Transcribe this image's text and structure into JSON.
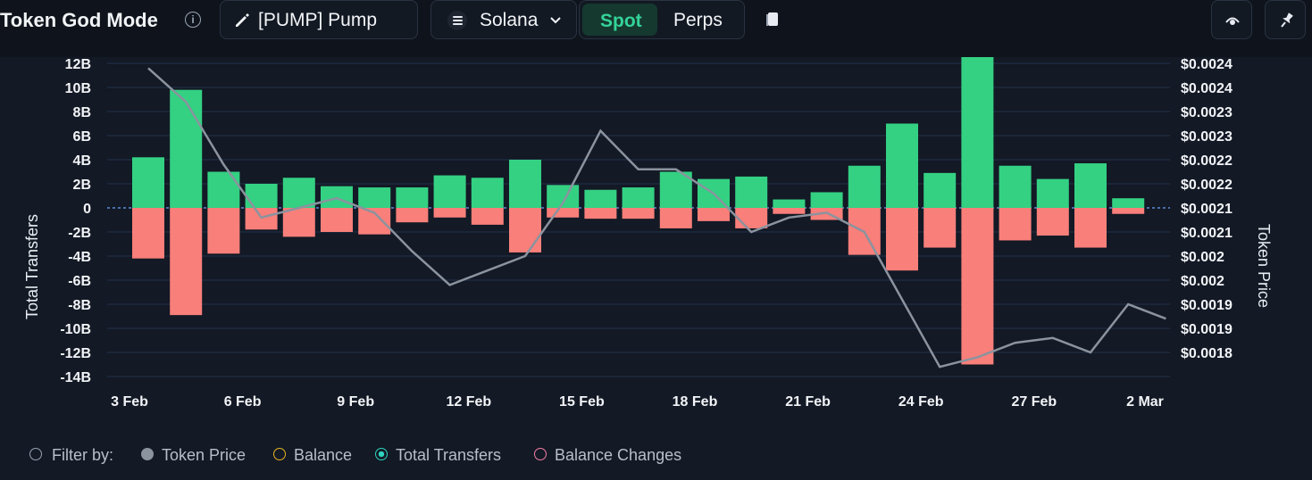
{
  "header": {
    "title": "Token God Mode",
    "token_label": "[PUMP] Pump",
    "chain_label": "Solana",
    "mode_spot": "Spot",
    "mode_perps": "Perps"
  },
  "legend": {
    "filter_label": "Filter by:",
    "items": [
      "Token Price",
      "Balance",
      "Total Transfers",
      "Balance Changes"
    ],
    "colors": [
      "#8b939e",
      "#e6b422",
      "#2dd4bf",
      "#f47fa5"
    ]
  },
  "colors": {
    "positive": "#34d183",
    "negative": "#f87f7a",
    "line": "#8b939e",
    "grid": "#22324a",
    "zero": "#5b8ed6"
  },
  "chart_data": {
    "type": "bar",
    "ylabel": "Total Transfers",
    "y2label": "Token Price",
    "ylim": [
      -14,
      12
    ],
    "y_ticks": [
      12,
      10,
      8,
      6,
      4,
      2,
      0,
      -2,
      -4,
      -6,
      -8,
      -10,
      -12,
      -14
    ],
    "y_tick_labels": [
      "12B",
      "10B",
      "8B",
      "6B",
      "4B",
      "2B",
      "0",
      "-2B",
      "-4B",
      "-6B",
      "-8B",
      "-10B",
      "-12B",
      "-14B"
    ],
    "y2_tick_labels": [
      "$0.0024",
      "$0.0024",
      "$0.0023",
      "$0.0023",
      "$0.0022",
      "$0.0022",
      "$0.0021",
      "$0.0021",
      "$0.002",
      "$0.002",
      "$0.0019",
      "$0.0019",
      "$0.0018"
    ],
    "x_tick_labels": [
      "3 Feb",
      "6 Feb",
      "9 Feb",
      "12 Feb",
      "15 Feb",
      "18 Feb",
      "21 Feb",
      "24 Feb",
      "27 Feb",
      "2 Mar"
    ],
    "x_tick_index": [
      0,
      3,
      6,
      9,
      12,
      15,
      18,
      21,
      24,
      27
    ],
    "dates": [
      "3 Feb",
      "4 Feb",
      "5 Feb",
      "6 Feb",
      "7 Feb",
      "8 Feb",
      "9 Feb",
      "10 Feb",
      "11 Feb",
      "12 Feb",
      "13 Feb",
      "14 Feb",
      "15 Feb",
      "16 Feb",
      "17 Feb",
      "18 Feb",
      "19 Feb",
      "20 Feb",
      "21 Feb",
      "22 Feb",
      "23 Feb",
      "24 Feb",
      "25 Feb",
      "26 Feb",
      "27 Feb",
      "28 Feb",
      "1 Mar",
      "2 Mar"
    ],
    "positive": [
      4.2,
      9.8,
      3.0,
      2.0,
      2.5,
      1.8,
      1.7,
      1.7,
      2.7,
      2.5,
      4.0,
      1.9,
      1.5,
      1.7,
      3.0,
      2.4,
      2.6,
      0.7,
      1.3,
      3.5,
      7.0,
      2.9,
      12.6,
      3.5,
      2.4,
      3.7,
      0.8,
      0.0
    ],
    "negative": [
      -4.2,
      -8.9,
      -3.8,
      -1.8,
      -2.4,
      -2.0,
      -2.2,
      -1.2,
      -0.8,
      -1.4,
      -3.7,
      -0.8,
      -0.9,
      -0.9,
      -1.7,
      -1.1,
      -1.7,
      -0.5,
      -1.0,
      -3.9,
      -5.2,
      -3.3,
      -13.0,
      -2.7,
      -2.3,
      -3.3,
      -0.5,
      0.0
    ],
    "price_series": {
      "name": "Token Price",
      "price_min": 0.00178,
      "price_max": 0.00243,
      "x": [
        0,
        1,
        2,
        3,
        4,
        5,
        6,
        7,
        8,
        9,
        10,
        11,
        12,
        13,
        14,
        15,
        16,
        17,
        18,
        19,
        20,
        21,
        22,
        23,
        24,
        25,
        26,
        27
      ],
      "values": [
        0.00242,
        0.00235,
        0.00222,
        0.00211,
        0.00213,
        0.00215,
        0.00212,
        0.00204,
        0.00197,
        0.002,
        0.00203,
        0.00214,
        0.00229,
        0.00221,
        0.00221,
        0.00216,
        0.00208,
        0.00211,
        0.00212,
        0.00208,
        0.00194,
        0.0018,
        0.00182,
        0.00185,
        0.00186,
        0.00183,
        0.00193,
        0.0019
      ]
    }
  }
}
